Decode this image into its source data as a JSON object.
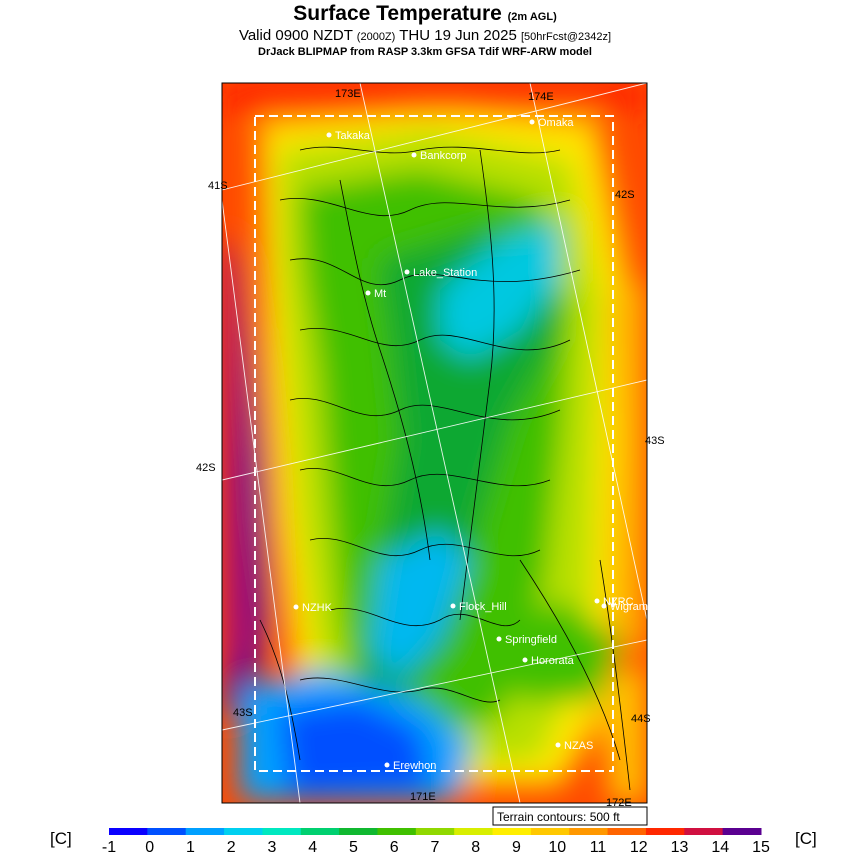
{
  "header": {
    "title": "Surface Temperature",
    "title_qualifier": "(2m AGL)",
    "valid_prefix": "Valid 0900 NZDT",
    "valid_utc": "(2000Z)",
    "valid_date": "THU 19 Jun 2025",
    "forecast_tag": "[50hrFcst@2342z]",
    "credit": "DrJack BLIPMAP from RASP 3.3km GFSA Tdif WRF-ARW model"
  },
  "map": {
    "grid_labels": {
      "lon_173e": "173E",
      "lon_174e": "174E",
      "lon_171e": "171E",
      "lon_172e": "172E",
      "lat_41s": "41S",
      "lat_42s_left": "42S",
      "lat_42s_right": "42S",
      "lat_43s_left": "43S",
      "lat_43s_right": "43S",
      "lat_44s": "44S"
    },
    "places": [
      {
        "name": "Takaka"
      },
      {
        "name": "Omaka"
      },
      {
        "name": "Bankcorp"
      },
      {
        "name": "Lake_Station"
      },
      {
        "name": "Mt"
      },
      {
        "name": "NZHK"
      },
      {
        "name": "Flock_Hill"
      },
      {
        "name": "NZRC"
      },
      {
        "name": "Wigram"
      },
      {
        "name": "Springfield"
      },
      {
        "name": "Hororata"
      },
      {
        "name": "NZAS"
      },
      {
        "name": "Erewhon"
      }
    ],
    "terrain_note": "Terrain contours: 500 ft"
  },
  "colorbar": {
    "unit_left": "[C]",
    "unit_right": "[C]",
    "ticks": [
      "-1",
      "0",
      "1",
      "2",
      "3",
      "4",
      "5",
      "6",
      "7",
      "8",
      "9",
      "10",
      "11",
      "12",
      "13",
      "14",
      "15"
    ],
    "colors": [
      "#0a00ff",
      "#0050ff",
      "#00a0ff",
      "#00d0f0",
      "#00e8c0",
      "#00d070",
      "#10b830",
      "#40c000",
      "#90d800",
      "#d8ee00",
      "#ffee00",
      "#ffc800",
      "#ff9800",
      "#ff6400",
      "#ff2800",
      "#d01040",
      "#5a0090"
    ]
  }
}
